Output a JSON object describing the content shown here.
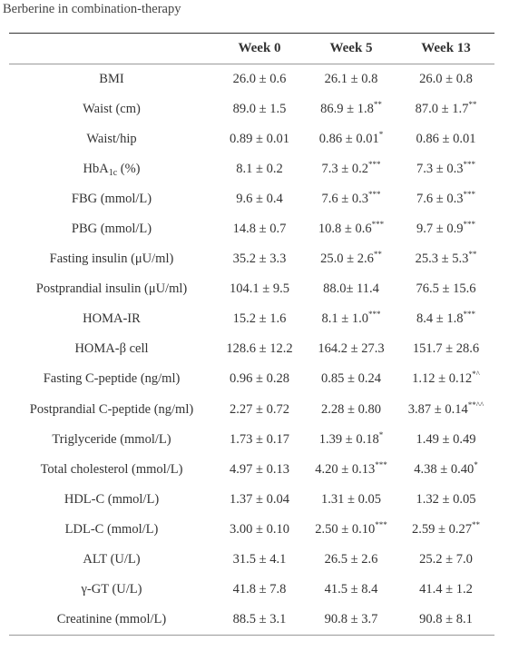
{
  "caption": "Berberine in combination-therapy",
  "table": {
    "headers": [
      "Week 0",
      "Week 5",
      "Week 13"
    ],
    "rows": [
      {
        "label": "BMI",
        "cells": [
          {
            "text": "26.0 ± 0.6"
          },
          {
            "text": "26.1 ± 0.8"
          },
          {
            "text": "26.0 ± 0.8"
          }
        ]
      },
      {
        "label": "Waist (cm)",
        "cells": [
          {
            "text": "89.0 ± 1.5"
          },
          {
            "text": "86.9 ± 1.8",
            "sup": "**"
          },
          {
            "text": "87.0 ± 1.7",
            "sup": "**"
          }
        ]
      },
      {
        "label": "Waist/hip",
        "cells": [
          {
            "text": "0.89 ± 0.01"
          },
          {
            "text": "0.86 ± 0.01",
            "sup": "*"
          },
          {
            "text": "0.86 ± 0.01"
          }
        ]
      },
      {
        "label": {
          "text": "HbA",
          "sub": "1c",
          "after": " (%)"
        },
        "cells": [
          {
            "text": "8.1 ± 0.2"
          },
          {
            "text": "7.3 ± 0.2",
            "sup": "***"
          },
          {
            "text": "7.3 ± 0.3",
            "sup": "***"
          }
        ]
      },
      {
        "label": "FBG (mmol/L)",
        "cells": [
          {
            "text": "9.6 ± 0.4"
          },
          {
            "text": "7.6 ± 0.3",
            "sup": "***"
          },
          {
            "text": "7.6 ± 0.3",
            "sup": "***"
          }
        ]
      },
      {
        "label": "PBG (mmol/L)",
        "cells": [
          {
            "text": "14.8 ± 0.7"
          },
          {
            "text": "10.8 ± 0.6",
            "sup": "***"
          },
          {
            "text": "9.7 ± 0.9",
            "sup": "***"
          }
        ]
      },
      {
        "label": "Fasting insulin (μU/ml)",
        "cells": [
          {
            "text": "35.2 ± 3.3"
          },
          {
            "text": "25.0 ± 2.6",
            "sup": "**"
          },
          {
            "text": "25.3 ± 5.3",
            "sup": "**"
          }
        ]
      },
      {
        "label": "Postprandial insulin (μU/ml)",
        "cells": [
          {
            "text": "104.1 ± 9.5"
          },
          {
            "text": "88.0± 11.4"
          },
          {
            "text": "76.5 ± 15.6"
          }
        ]
      },
      {
        "label": "HOMA-IR",
        "cells": [
          {
            "text": "15.2 ± 1.6"
          },
          {
            "text": "8.1 ± 1.0",
            "sup": "***"
          },
          {
            "text": "8.4 ± 1.8",
            "sup": "***"
          }
        ]
      },
      {
        "label": "HOMA-β cell",
        "cells": [
          {
            "text": "128.6 ± 12.2"
          },
          {
            "text": "164.2 ± 27.3"
          },
          {
            "text": "151.7 ± 28.6"
          }
        ]
      },
      {
        "label": "Fasting C-peptide (ng/ml)",
        "cells": [
          {
            "text": "0.96 ± 0.28"
          },
          {
            "text": "0.85 ± 0.24"
          },
          {
            "text": "1.12 ± 0.12",
            "sup": "*^"
          }
        ]
      },
      {
        "label": "Postprandial C-peptide (ng/ml)",
        "cells": [
          {
            "text": "2.27 ± 0.72"
          },
          {
            "text": "2.28 ± 0.80"
          },
          {
            "text": "3.87 ± 0.14",
            "sup": "**^^"
          }
        ]
      },
      {
        "label": "Triglyceride (mmol/L)",
        "cells": [
          {
            "text": "1.73 ± 0.17"
          },
          {
            "text": "1.39 ± 0.18",
            "sup": "*"
          },
          {
            "text": "1.49 ± 0.49"
          }
        ]
      },
      {
        "label": "Total cholesterol (mmol/L)",
        "cells": [
          {
            "text": "4.97 ± 0.13"
          },
          {
            "text": "4.20 ± 0.13",
            "sup": "***"
          },
          {
            "text": "4.38 ± 0.40",
            "sup": "*"
          }
        ]
      },
      {
        "label": "HDL-C (mmol/L)",
        "cells": [
          {
            "text": "1.37 ± 0.04"
          },
          {
            "text": "1.31 ± 0.05"
          },
          {
            "text": "1.32 ± 0.05"
          }
        ]
      },
      {
        "label": "LDL-C (mmol/L)",
        "cells": [
          {
            "text": "3.00 ± 0.10"
          },
          {
            "text": "2.50 ± 0.10",
            "sup": "***"
          },
          {
            "text": "2.59 ± 0.27",
            "sup": "**"
          }
        ]
      },
      {
        "label": "ALT (U/L)",
        "cells": [
          {
            "text": "31.5 ± 4.1"
          },
          {
            "text": "26.5 ± 2.6"
          },
          {
            "text": "25.2 ± 7.0"
          }
        ]
      },
      {
        "label": "γ-GT (U/L)",
        "cells": [
          {
            "text": "41.8 ± 7.8"
          },
          {
            "text": "41.5 ± 8.4"
          },
          {
            "text": "41.4 ± 1.2"
          }
        ]
      },
      {
        "label": "Creatinine (mmol/L)",
        "cells": [
          {
            "text": "88.5 ± 3.1"
          },
          {
            "text": "90.8 ± 3.7"
          },
          {
            "text": "90.8 ± 8.1"
          }
        ]
      }
    ]
  }
}
